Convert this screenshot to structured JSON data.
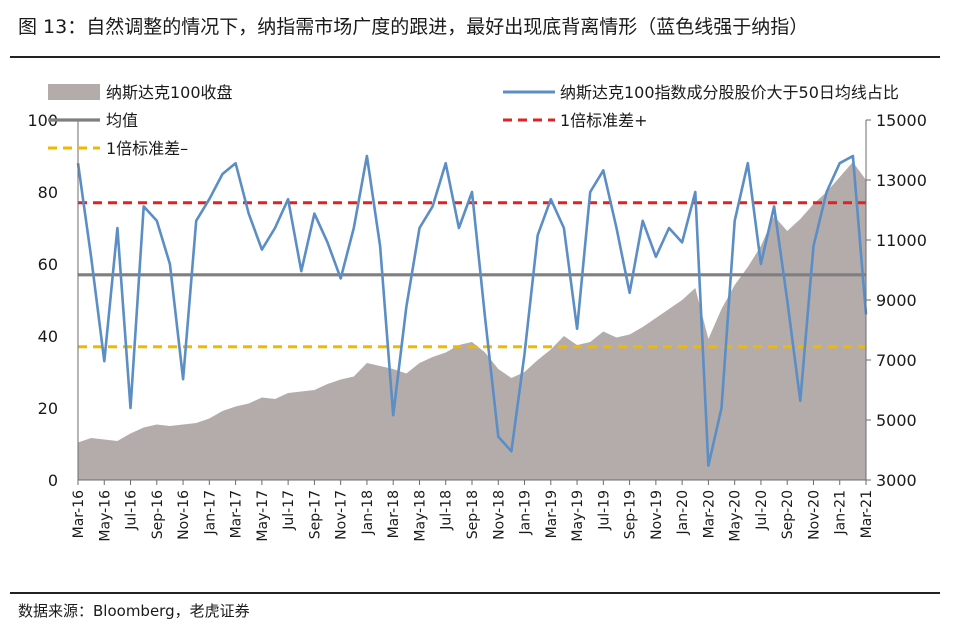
{
  "title": "图 13：自然调整的情况下，纳指需市场广度的跟进，最好出现底背离情形（蓝色线强于纳指）",
  "source": "数据来源：Bloomberg，老虎证券",
  "colors": {
    "area": "#b3acab",
    "line": "#5b8ec4",
    "mean": "#7f7f7f",
    "upper": "#e02222",
    "lower": "#f2b800"
  },
  "chart_data": {
    "type": "line",
    "x_tick_labels": [
      "Mar-16",
      "May-16",
      "Jul-16",
      "Sep-16",
      "Nov-16",
      "Jan-17",
      "Mar-17",
      "May-17",
      "Jul-17",
      "Sep-17",
      "Nov-17",
      "Jan-18",
      "Mar-18",
      "May-18",
      "Jul-18",
      "Sep-18",
      "Nov-18",
      "Jan-19",
      "Mar-19",
      "May-19",
      "Jul-19",
      "Sep-19",
      "Nov-19",
      "Jan-20",
      "Mar-20",
      "May-20",
      "Jul-20",
      "Sep-20",
      "Nov-20",
      "Jan-21",
      "Mar-21"
    ],
    "y_left": {
      "min": 0,
      "max": 100,
      "ticks": [
        0,
        20,
        40,
        60,
        80,
        100
      ]
    },
    "y_right": {
      "min": 3000,
      "max": 15000,
      "ticks": [
        "3000",
        "5000",
        "7000",
        "9000",
        "11000",
        "13000",
        "15000"
      ]
    },
    "legend": [
      {
        "key": "area",
        "label": "纳斯达克100收盘"
      },
      {
        "key": "line",
        "label": "纳斯达克100指数成分股股价大于50日均线占比"
      },
      {
        "key": "mean",
        "label": "均值"
      },
      {
        "key": "upper",
        "label": "1倍标准差+"
      },
      {
        "key": "lower",
        "label": "1倍标准差–"
      }
    ],
    "series": [
      {
        "name": "纳斯达克100收盘",
        "axis": "right",
        "x": [
          "2016-03",
          "2016-04",
          "2016-05",
          "2016-06",
          "2016-07",
          "2016-08",
          "2016-09",
          "2016-10",
          "2016-11",
          "2016-12",
          "2017-01",
          "2017-02",
          "2017-03",
          "2017-04",
          "2017-05",
          "2017-06",
          "2017-07",
          "2017-08",
          "2017-09",
          "2017-10",
          "2017-11",
          "2017-12",
          "2018-01",
          "2018-02",
          "2018-03",
          "2018-04",
          "2018-05",
          "2018-06",
          "2018-07",
          "2018-08",
          "2018-09",
          "2018-10",
          "2018-11",
          "2018-12",
          "2019-01",
          "2019-02",
          "2019-03",
          "2019-04",
          "2019-05",
          "2019-06",
          "2019-07",
          "2019-08",
          "2019-09",
          "2019-10",
          "2019-11",
          "2019-12",
          "2020-01",
          "2020-02",
          "2020-03",
          "2020-04",
          "2020-05",
          "2020-06",
          "2020-07",
          "2020-08",
          "2020-09",
          "2020-10",
          "2020-11",
          "2020-12",
          "2021-01",
          "2021-02",
          "2021-03"
        ],
        "values": [
          4250,
          4400,
          4350,
          4300,
          4550,
          4750,
          4850,
          4800,
          4850,
          4900,
          5050,
          5300,
          5450,
          5550,
          5750,
          5700,
          5900,
          5950,
          6000,
          6200,
          6350,
          6450,
          6900,
          6800,
          6700,
          6550,
          6900,
          7100,
          7250,
          7500,
          7600,
          7250,
          6700,
          6400,
          6600,
          7000,
          7350,
          7800,
          7500,
          7600,
          7950,
          7750,
          7850,
          8100,
          8400,
          8700,
          9000,
          9400,
          7700,
          8700,
          9500,
          10100,
          10800,
          11800,
          11300,
          11700,
          12200,
          12600,
          13100,
          13600,
          13000
        ]
      },
      {
        "name": "纳斯达克100指数成分股股价大于50日均线占比",
        "axis": "left",
        "x": [
          "2016-03",
          "2016-04",
          "2016-05",
          "2016-06",
          "2016-07",
          "2016-08",
          "2016-09",
          "2016-10",
          "2016-11",
          "2016-12",
          "2017-01",
          "2017-02",
          "2017-03",
          "2017-04",
          "2017-05",
          "2017-06",
          "2017-07",
          "2017-08",
          "2017-09",
          "2017-10",
          "2017-11",
          "2017-12",
          "2018-01",
          "2018-02",
          "2018-03",
          "2018-04",
          "2018-05",
          "2018-06",
          "2018-07",
          "2018-08",
          "2018-09",
          "2018-10",
          "2018-11",
          "2018-12",
          "2019-01",
          "2019-02",
          "2019-03",
          "2019-04",
          "2019-05",
          "2019-06",
          "2019-07",
          "2019-08",
          "2019-09",
          "2019-10",
          "2019-11",
          "2019-12",
          "2020-01",
          "2020-02",
          "2020-03",
          "2020-04",
          "2020-05",
          "2020-06",
          "2020-07",
          "2020-08",
          "2020-09",
          "2020-10",
          "2020-11",
          "2020-12",
          "2021-01",
          "2021-02",
          "2021-03"
        ],
        "values": [
          88,
          62,
          33,
          70,
          20,
          76,
          72,
          60,
          28,
          72,
          78,
          85,
          88,
          74,
          64,
          70,
          78,
          58,
          74,
          66,
          56,
          70,
          90,
          65,
          18,
          48,
          70,
          76,
          88,
          70,
          80,
          45,
          12,
          8,
          35,
          68,
          78,
          70,
          42,
          80,
          86,
          70,
          52,
          72,
          62,
          70,
          66,
          80,
          4,
          20,
          72,
          88,
          60,
          76,
          50,
          22,
          65,
          80,
          88,
          90,
          46
        ]
      }
    ],
    "reference_lines": [
      {
        "name": "均值",
        "value": 57
      },
      {
        "name": "1倍标准差+",
        "value": 77
      },
      {
        "name": "1倍标准差–",
        "value": 37
      }
    ]
  }
}
